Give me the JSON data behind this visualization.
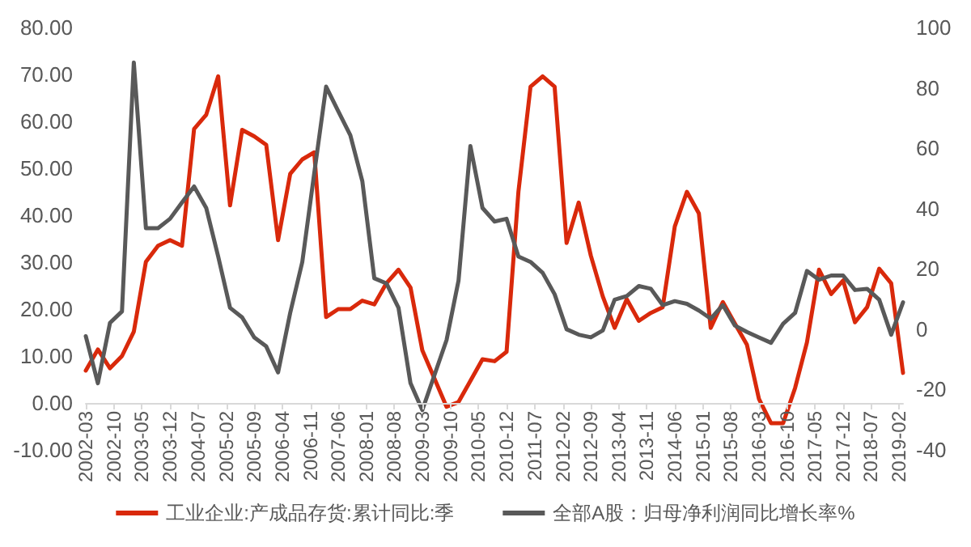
{
  "chart_data": {
    "type": "line",
    "x": [
      "2002-03",
      "2002-06",
      "2002-09",
      "2002-12",
      "2003-03",
      "2003-06",
      "2003-09",
      "2003-12",
      "2004-03",
      "2004-06",
      "2004-09",
      "2004-12",
      "2005-03",
      "2005-06",
      "2005-09",
      "2005-12",
      "2006-03",
      "2006-06",
      "2006-09",
      "2006-12",
      "2007-03",
      "2007-06",
      "2007-09",
      "2007-12",
      "2008-03",
      "2008-06",
      "2008-09",
      "2008-12",
      "2009-03",
      "2009-06",
      "2009-09",
      "2009-12",
      "2010-03",
      "2010-06",
      "2010-09",
      "2010-12",
      "2011-03",
      "2011-06",
      "2011-09",
      "2011-12",
      "2012-03",
      "2012-06",
      "2012-09",
      "2012-12",
      "2013-03",
      "2013-06",
      "2013-09",
      "2013-12",
      "2014-03",
      "2014-06",
      "2014-09",
      "2014-12",
      "2015-03",
      "2015-06",
      "2015-09",
      "2015-12",
      "2016-03",
      "2016-06",
      "2016-09",
      "2016-12",
      "2017-03",
      "2017-06",
      "2017-09",
      "2017-12",
      "2018-03",
      "2018-06",
      "2018-09",
      "2018-12",
      "2019-03"
    ],
    "series": [
      {
        "name": "工业企业:产成品存货:累计同比:季",
        "color": "#d9290b",
        "values": [
          6.9,
          11.4,
          7.4,
          10.0,
          15.2,
          30.1,
          33.5,
          34.7,
          33.5,
          58.4,
          61.4,
          69.6,
          42.1,
          58.2,
          56.8,
          55.0,
          34.7,
          48.8,
          51.9,
          53.4,
          18.3,
          20.0,
          20.0,
          21.8,
          21.0,
          25.5,
          28.4,
          24.6,
          11.2,
          5.2,
          -0.8,
          0.2,
          4.7,
          9.3,
          8.9,
          10.9,
          45.0,
          67.4,
          69.6,
          67.4,
          34.1,
          42.7,
          31.4,
          22.7,
          16.0,
          22.1,
          17.5,
          19.2,
          20.4,
          37.6,
          45.0,
          40.4,
          16.0,
          21.5,
          16.9,
          12.4,
          0.9,
          -4.3,
          -4.3,
          3.2,
          12.9,
          28.4,
          23.2,
          26.1,
          17.2,
          20.4,
          28.6,
          25.5,
          6.4
        ]
      },
      {
        "name": "全部A股：归母净利润同比增长率%",
        "color": "#595959",
        "axis": "y2",
        "values": [
          -2.3,
          -17.9,
          2.1,
          5.9,
          88.4,
          33.5,
          33.5,
          36.6,
          42.0,
          47.3,
          40.2,
          24.1,
          7.1,
          3.9,
          -2.7,
          -5.7,
          -14.3,
          5.4,
          22.3,
          51.8,
          80.4,
          72.3,
          64.3,
          49.1,
          16.9,
          15.2,
          7.1,
          -17.9,
          -26.8,
          -15.2,
          -3.6,
          16.1,
          60.7,
          40.2,
          35.7,
          36.6,
          24.1,
          22.3,
          18.7,
          11.6,
          0.0,
          -1.8,
          -2.7,
          -0.4,
          9.8,
          11.0,
          14.3,
          13.4,
          8.0,
          9.3,
          8.4,
          6.2,
          3.5,
          8.0,
          1.2,
          -0.9,
          -2.7,
          -4.5,
          1.8,
          5.4,
          19.3,
          16.4,
          17.8,
          17.8,
          13.0,
          13.4,
          9.8,
          -1.8,
          8.9
        ]
      }
    ],
    "xlim": [
      "2002-03",
      "2019-03"
    ],
    "xticks": [
      "2002-03",
      "2002-10",
      "2003-05",
      "2003-12",
      "2004-07",
      "2005-02",
      "2005-09",
      "2006-04",
      "2006-11",
      "2007-06",
      "2008-01",
      "2008-08",
      "2009-03",
      "2009-10",
      "2010-05",
      "2010-12",
      "2011-07",
      "2012-02",
      "2012-09",
      "2013-04",
      "2013-11",
      "2014-06",
      "2015-01",
      "2015-08",
      "2016-03",
      "2016-10",
      "2017-05",
      "2017-12",
      "2018-07",
      "2019-02"
    ],
    "ylim": [
      -10,
      80
    ],
    "yticks": [
      {
        "value": -10,
        "label": "-10.00"
      },
      {
        "value": 0,
        "label": "0.00"
      },
      {
        "value": 10,
        "label": "10.00"
      },
      {
        "value": 20,
        "label": "20.00"
      },
      {
        "value": 30,
        "label": "30.00"
      },
      {
        "value": 40,
        "label": "40.00"
      },
      {
        "value": 50,
        "label": "50.00"
      },
      {
        "value": 60,
        "label": "60.00"
      },
      {
        "value": 70,
        "label": "70.00"
      },
      {
        "value": 80,
        "label": "80.00"
      }
    ],
    "y2lim": [
      -40,
      100
    ],
    "y2ticks": [
      -40,
      -20,
      0,
      20,
      40,
      60,
      80,
      100
    ],
    "legend": "bottom"
  }
}
